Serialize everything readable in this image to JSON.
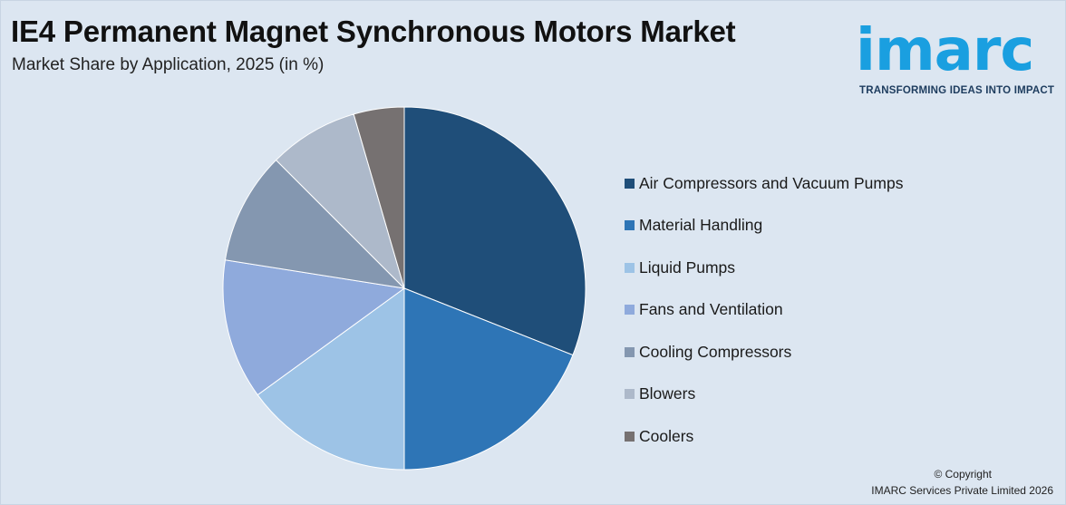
{
  "header": {
    "title": "IE4 Permanent Magnet Synchronous Motors Market",
    "subtitle": "Market Share by Application, 2025 (in %)"
  },
  "logo": {
    "word": "imarc",
    "tagline": "TRANSFORMING IDEAS INTO IMPACT"
  },
  "footer": {
    "copyright": "© Copyright",
    "company": "IMARC Services Private Limited 2026"
  },
  "colors": {
    "background": "#dce6f1",
    "brand": "#1a9fe0"
  },
  "chart_data": {
    "type": "pie",
    "title": "IE4 Permanent Magnet Synchronous Motors Market",
    "subtitle": "Market Share by Application, 2025 (in %)",
    "legend_position": "right",
    "start_angle": "12 o'clock",
    "direction": "clockwise",
    "categories": [
      "Air Compressors and Vacuum Pumps",
      "Material Handling",
      "Liquid Pumps",
      "Fans and Ventilation",
      "Cooling Compressors",
      "Blowers",
      "Coolers"
    ],
    "values": [
      31,
      19,
      15,
      12.5,
      10,
      8,
      4.5
    ],
    "colors": [
      "#1f4e79",
      "#2e75b6",
      "#9dc3e6",
      "#8faadc",
      "#8497b0",
      "#adb9ca",
      "#767171"
    ]
  }
}
